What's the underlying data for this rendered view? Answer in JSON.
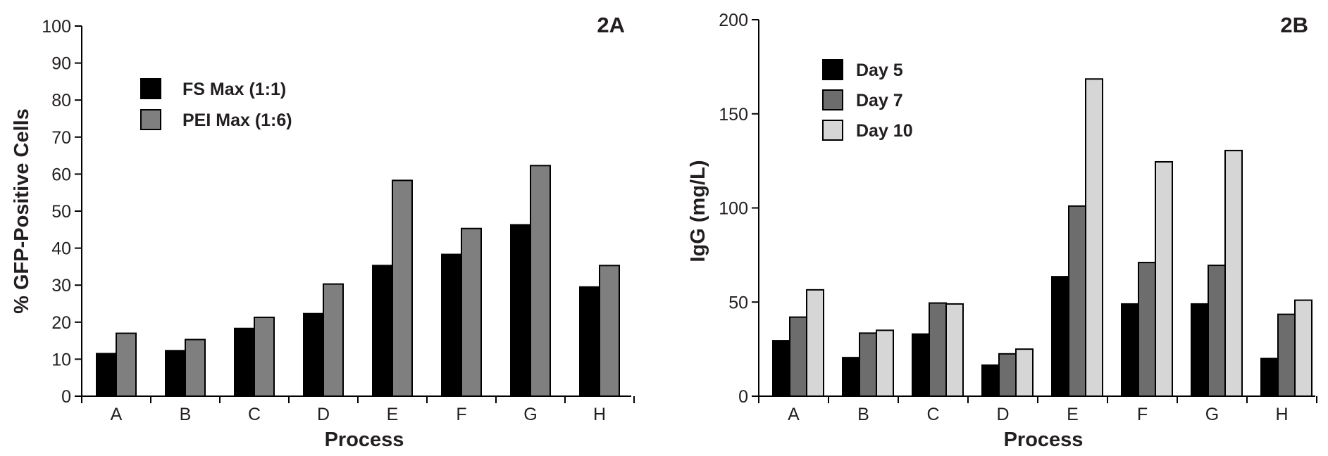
{
  "chart_data": [
    {
      "type": "bar",
      "panel_label": "2A",
      "title": "",
      "xlabel": "Process",
      "ylabel": "% GFP-Positive Cells",
      "ylim": [
        0,
        100
      ],
      "yticks": [
        "0",
        "10",
        "20",
        "30",
        "40",
        "50",
        "60",
        "70",
        "80",
        "90",
        "100"
      ],
      "categories": [
        "A",
        "B",
        "C",
        "D",
        "E",
        "F",
        "G",
        "H"
      ],
      "legend_position": "top-left",
      "grid": false,
      "series": [
        {
          "name": "FS Max (1:1)",
          "color": "#000000",
          "values": [
            11.5,
            12.3,
            18.3,
            22.3,
            35.3,
            38.3,
            46.3,
            29.5
          ]
        },
        {
          "name": "PEI Max (1:6)",
          "color": "#7f7f7f",
          "values": [
            17.0,
            15.3,
            21.3,
            30.3,
            58.3,
            45.3,
            62.3,
            35.3
          ]
        }
      ]
    },
    {
      "type": "bar",
      "panel_label": "2B",
      "title": "",
      "xlabel": "Process",
      "ylabel": "IgG (mg/L)",
      "ylim": [
        0,
        200
      ],
      "yticks": [
        "0",
        "50",
        "100",
        "150",
        "200"
      ],
      "categories": [
        "A",
        "B",
        "C",
        "D",
        "E",
        "F",
        "G",
        "H"
      ],
      "legend_position": "top-left",
      "grid": false,
      "series": [
        {
          "name": "Day 5",
          "color": "#000000",
          "values": [
            29.5,
            20.5,
            33.0,
            16.5,
            63.5,
            49.0,
            49.0,
            20.0
          ]
        },
        {
          "name": "Day 7",
          "color": "#6d6d6d",
          "values": [
            42.0,
            33.5,
            49.5,
            22.5,
            101.0,
            71.0,
            69.5,
            43.5
          ]
        },
        {
          "name": "Day 10",
          "color": "#d6d6d6",
          "values": [
            56.5,
            35.0,
            49.0,
            25.0,
            168.5,
            124.5,
            130.5,
            51.0
          ]
        }
      ]
    }
  ]
}
